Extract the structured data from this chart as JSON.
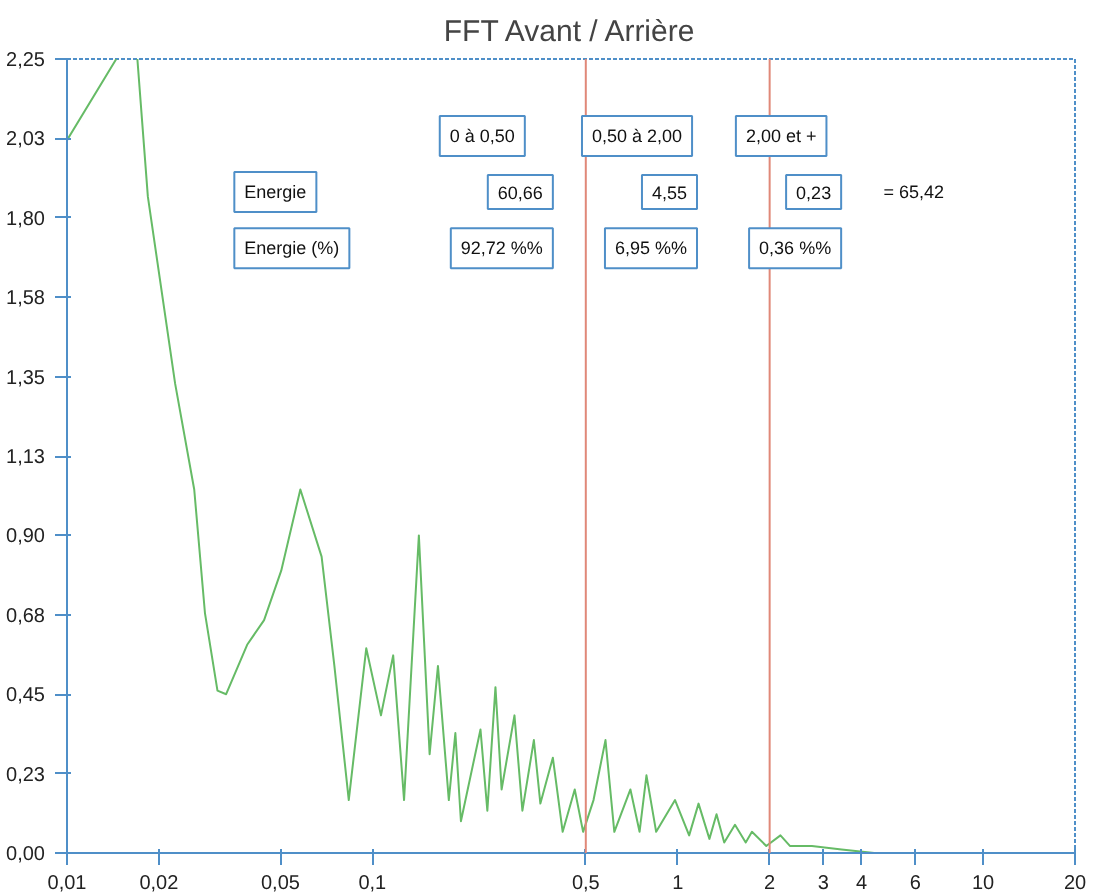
{
  "chart_data": {
    "type": "line",
    "title": "FFT Avant / Arrière",
    "log": "x",
    "grid": false,
    "x": [
      0.01,
      0.0145,
      0.0155,
      0.017,
      0.0184,
      0.0226,
      0.0261,
      0.0283,
      0.0311,
      0.0332,
      0.0389,
      0.0442,
      0.0503,
      0.0581,
      0.0682,
      0.0751,
      0.0837,
      0.0955,
      0.1067,
      0.117,
      0.127,
      0.142,
      0.154,
      0.164,
      0.178,
      0.187,
      0.195,
      0.226,
      0.238,
      0.253,
      0.265,
      0.292,
      0.31,
      0.338,
      0.355,
      0.39,
      0.42,
      0.46,
      0.49,
      0.53,
      0.58,
      0.62,
      0.7,
      0.75,
      0.79,
      0.85,
      0.98,
      1.09,
      1.17,
      1.27,
      1.34,
      1.42,
      1.54,
      1.67,
      1.75,
      1.95,
      2.17,
      2.33,
      2.75,
      3.44,
      4.4,
      5.8,
      20
    ],
    "series": [
      {
        "color": "#66bb66",
        "values": [
          2.02,
          2.25,
          null,
          2.25,
          1.86,
          1.33,
          1.03,
          0.68,
          0.46,
          0.45,
          0.59,
          0.66,
          0.8,
          1.03,
          0.84,
          0.53,
          0.15,
          0.58,
          0.39,
          0.56,
          0.15,
          0.9,
          0.28,
          0.53,
          0.15,
          0.34,
          0.09,
          0.35,
          0.12,
          0.47,
          0.18,
          0.39,
          0.12,
          0.32,
          0.14,
          0.27,
          0.06,
          0.18,
          0.06,
          0.15,
          0.32,
          0.06,
          0.18,
          0.06,
          0.22,
          0.06,
          0.15,
          0.05,
          0.14,
          0.04,
          0.11,
          0.03,
          0.08,
          0.03,
          0.06,
          0.02,
          0.05,
          0.02,
          0.02,
          0.01,
          0.0,
          0.0,
          0.0
        ]
      }
    ],
    "xlim": [
      0.01,
      20
    ],
    "ylim": [
      0,
      2.25
    ],
    "xticks": [
      {
        "value": 0.01,
        "label": "0,01"
      },
      {
        "value": 0.02,
        "label": "0,02"
      },
      {
        "value": 0.05,
        "label": "0,05"
      },
      {
        "value": 0.1,
        "label": "0,1"
      },
      {
        "value": 0.5,
        "label": "0,5"
      },
      1,
      2,
      3,
      4,
      6,
      10,
      20
    ],
    "yticks": [
      {
        "value": 0,
        "label": "0,00"
      },
      {
        "value": 0.225,
        "label": "0,23"
      },
      {
        "value": 0.45,
        "label": "0,45"
      },
      {
        "value": 0.675,
        "label": "0,68"
      },
      {
        "value": 0.9,
        "label": "0,90"
      },
      {
        "value": 1.125,
        "label": "1,13"
      },
      {
        "value": 1.35,
        "label": "1,35"
      },
      {
        "value": 1.575,
        "label": "1,58"
      },
      {
        "value": 1.8,
        "label": "1,80"
      },
      {
        "value": 2.025,
        "label": "2,03"
      },
      {
        "value": 2.25,
        "label": "2,25"
      }
    ],
    "ref_lines": [
      {
        "axis": "x",
        "value": 0.5,
        "color": "#e08878"
      },
      {
        "axis": "x",
        "value": 2,
        "color": "#e08878"
      }
    ],
    "annotations": [
      "0 à 0,50",
      "0,50 à 2,00",
      "2,00 et +",
      "Energie",
      "60,66",
      "4,55",
      "0,23",
      "= 65,42",
      "Energie (%)",
      "92,72 %%",
      "6,95 %%",
      "0,36 %%"
    ]
  }
}
